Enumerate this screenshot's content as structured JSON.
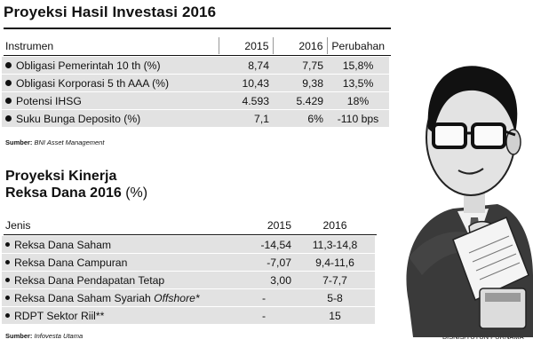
{
  "table1": {
    "title": "Proyeksi Hasil Investasi 2016",
    "headers": [
      "Instrumen",
      "2015",
      "2016",
      "Perubahan"
    ],
    "rows": [
      {
        "label": "Obligasi Pemerintah 10 th (%)",
        "v2015": "8,74",
        "v2016": "7,75",
        "change": "15,8%"
      },
      {
        "label": "Obligasi Korporasi 5 th AAA (%)",
        "v2015": "10,43",
        "v2016": "9,38",
        "change": "13,5%"
      },
      {
        "label": "Potensi IHSG",
        "v2015": "4.593",
        "v2016": "5.429",
        "change": "18%"
      },
      {
        "label": "Suku Bunga Deposito (%)",
        "v2015": "7,1",
        "v2016": "6%",
        "change": "-110 bps"
      }
    ],
    "source_label": "Sumber:",
    "source": "BNI Asset Management"
  },
  "table2": {
    "title_line1": "Proyeksi Kinerja",
    "title_line2": "Reksa Dana 2016",
    "title_unit": "(%)",
    "headers": [
      "Jenis",
      "2015",
      "2016"
    ],
    "rows": [
      {
        "label": "Reksa Dana Saham",
        "italic": "",
        "v2015": "-14,54",
        "v2016": "11,3-14,8"
      },
      {
        "label": "Reksa Dana Campuran",
        "italic": "",
        "v2015": "-7,07",
        "v2016": "9,4-11,6"
      },
      {
        "label": "Reksa Dana Pendapatan Tetap",
        "italic": "",
        "v2015": "3,00",
        "v2016": "7-7,7"
      },
      {
        "label": "Reksa Dana Saham Syariah ",
        "italic": "Offshore*",
        "v2015": "-",
        "v2016": "5-8"
      },
      {
        "label": "RDPT Sektor Riil**",
        "italic": "",
        "v2015": "-",
        "v2016": "15"
      }
    ],
    "source_label": "Sumber:",
    "source": "Infovesta Utama"
  },
  "credit": "BISNIS/TUTUN PURNAMA",
  "colors": {
    "shade": "#e2e2e2",
    "ink": "#111111"
  }
}
